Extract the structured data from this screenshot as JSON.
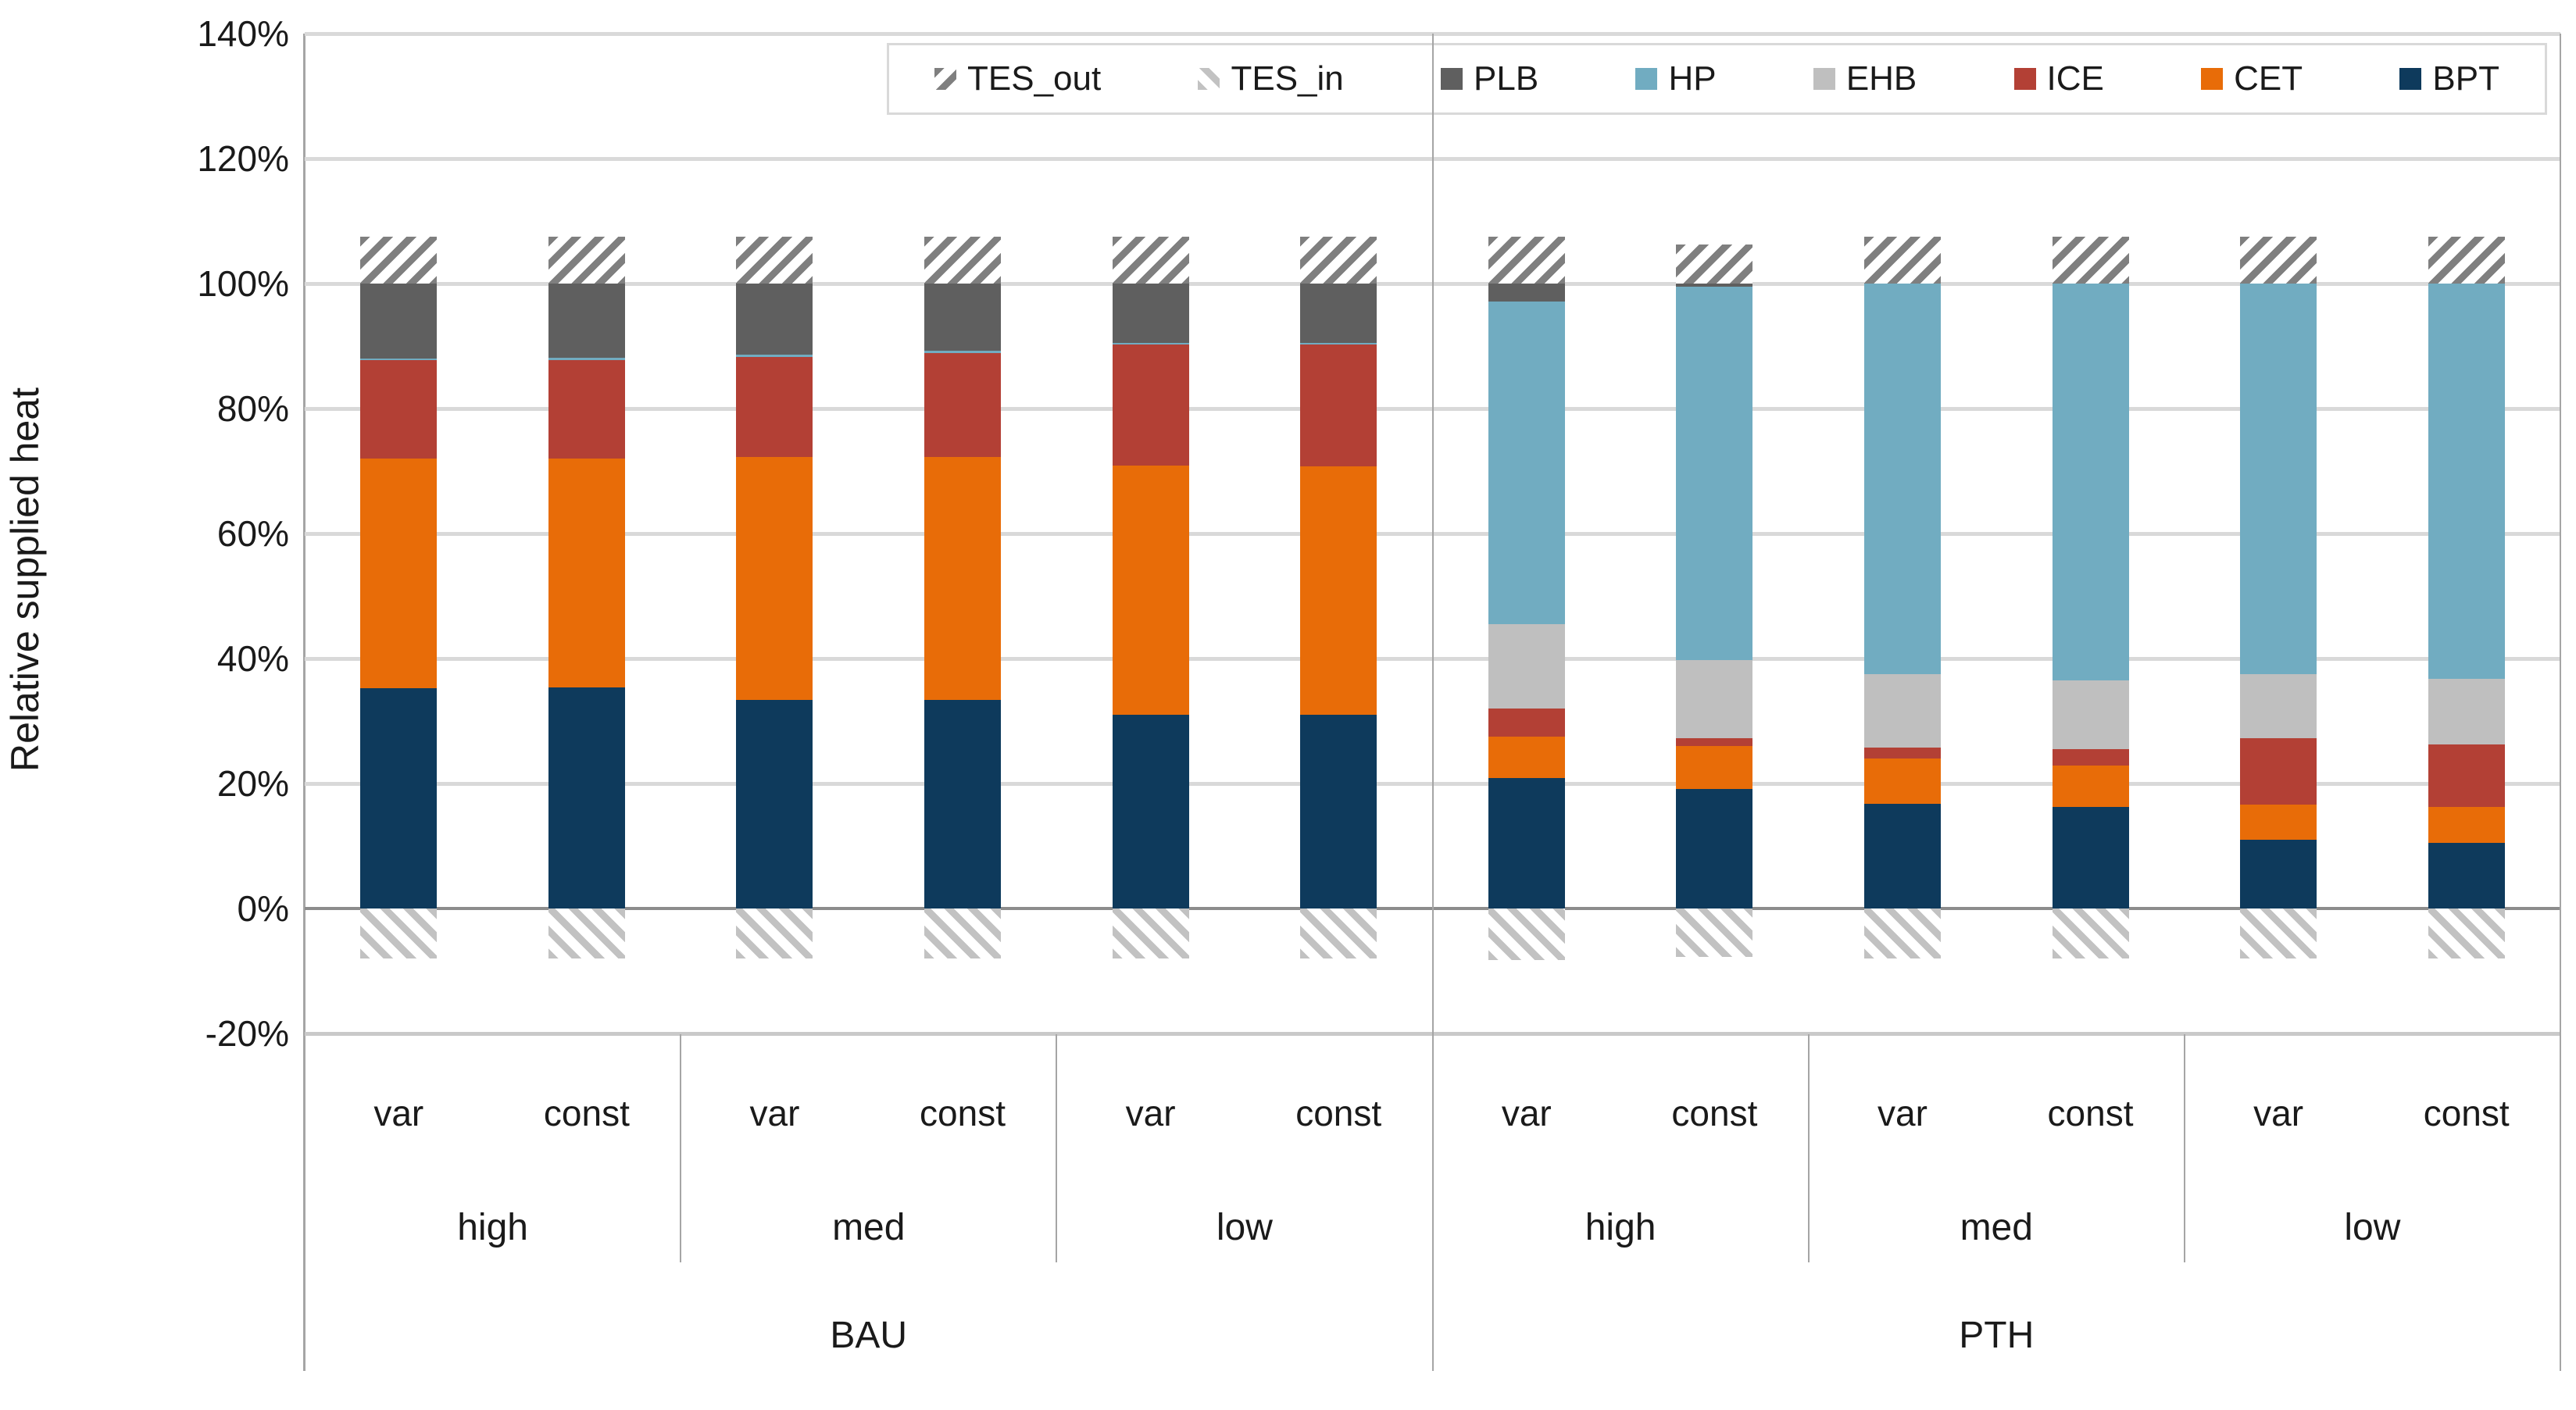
{
  "chart_data": {
    "type": "bar",
    "stacked": true,
    "title": "",
    "xlabel": "",
    "ylabel": "Relative supplied heat",
    "ylim": [
      -20,
      140
    ],
    "grid": true,
    "legend_position": "top-right",
    "y_ticks": [
      {
        "value": 140,
        "label": "140%"
      },
      {
        "value": 120,
        "label": "120%"
      },
      {
        "value": 100,
        "label": "100%"
      },
      {
        "value": 80,
        "label": "80%"
      },
      {
        "value": 60,
        "label": "60%"
      },
      {
        "value": 40,
        "label": "40%"
      },
      {
        "value": 20,
        "label": "20%"
      },
      {
        "value": 0,
        "label": "0%"
      },
      {
        "value": -20,
        "label": "-20%"
      }
    ],
    "categories": [
      {
        "scenario": "BAU",
        "price": "high",
        "tariff": "var"
      },
      {
        "scenario": "BAU",
        "price": "high",
        "tariff": "const"
      },
      {
        "scenario": "BAU",
        "price": "med",
        "tariff": "var"
      },
      {
        "scenario": "BAU",
        "price": "med",
        "tariff": "const"
      },
      {
        "scenario": "BAU",
        "price": "low",
        "tariff": "var"
      },
      {
        "scenario": "BAU",
        "price": "low",
        "tariff": "const"
      },
      {
        "scenario": "PTH",
        "price": "high",
        "tariff": "var"
      },
      {
        "scenario": "PTH",
        "price": "high",
        "tariff": "const"
      },
      {
        "scenario": "PTH",
        "price": "med",
        "tariff": "var"
      },
      {
        "scenario": "PTH",
        "price": "med",
        "tariff": "const"
      },
      {
        "scenario": "PTH",
        "price": "low",
        "tariff": "var"
      },
      {
        "scenario": "PTH",
        "price": "low",
        "tariff": "const"
      }
    ],
    "category_axis_rows": {
      "tariff": [
        "var",
        "const",
        "var",
        "const",
        "var",
        "const",
        "var",
        "const",
        "var",
        "const",
        "var",
        "const"
      ],
      "price": [
        "high",
        "med",
        "low",
        "high",
        "med",
        "low"
      ],
      "scenario": [
        "BAU",
        "PTH"
      ]
    },
    "series": [
      {
        "name": "BPT",
        "color": "#0E3A5C",
        "values": [
          35.2,
          35.4,
          33.4,
          33.4,
          31.0,
          31.0,
          20.9,
          19.1,
          16.8,
          16.2,
          11.0,
          10.5
        ]
      },
      {
        "name": "CET",
        "color": "#E86C08",
        "values": [
          36.8,
          36.6,
          38.9,
          38.9,
          39.9,
          39.7,
          6.6,
          6.9,
          7.2,
          6.7,
          5.6,
          5.8
        ]
      },
      {
        "name": "ICE",
        "color": "#B34035",
        "values": [
          15.7,
          15.8,
          16.0,
          16.6,
          19.3,
          19.5,
          4.5,
          1.3,
          1.8,
          2.6,
          10.7,
          9.9
        ]
      },
      {
        "name": "EHB",
        "color": "#BFBFBF",
        "values": [
          0,
          0,
          0,
          0,
          0,
          0,
          13.5,
          12.5,
          11.7,
          11.0,
          10.2,
          10.5
        ]
      },
      {
        "name": "HP",
        "color": "#71ACC1",
        "values": [
          0.3,
          0.3,
          0.3,
          0.3,
          0.3,
          0.3,
          51.6,
          59.7,
          62.5,
          63.5,
          62.5,
          63.3
        ]
      },
      {
        "name": "PLB",
        "color": "#5F5F5F",
        "values": [
          12.0,
          11.9,
          11.4,
          10.8,
          9.5,
          9.5,
          2.9,
          0.5,
          0,
          0,
          0,
          0
        ]
      },
      {
        "name": "TES_out",
        "pattern": "diag-up",
        "pattern_color": "#7F7F7F",
        "values": [
          7.5,
          7.5,
          7.5,
          7.5,
          7.5,
          7.5,
          7.5,
          6.3,
          7.5,
          7.5,
          7.5,
          7.5
        ]
      },
      {
        "name": "TES_in",
        "pattern": "diag-down",
        "pattern_color": "#C2C2C2",
        "values": [
          -8,
          -8,
          -8,
          -8,
          -8,
          -8,
          -8.2,
          -7.7,
          -8,
          -8,
          -8,
          -8
        ]
      }
    ],
    "legend": [
      "TES_out",
      "TES_in",
      "PLB",
      "HP",
      "EHB",
      "ICE",
      "CET",
      "BPT"
    ],
    "colors": {
      "gridline": "#D9D9D9",
      "axis_line": "#A5A5A5",
      "zero_line": "#8C8C8C",
      "text": "#1a1a1a"
    }
  }
}
